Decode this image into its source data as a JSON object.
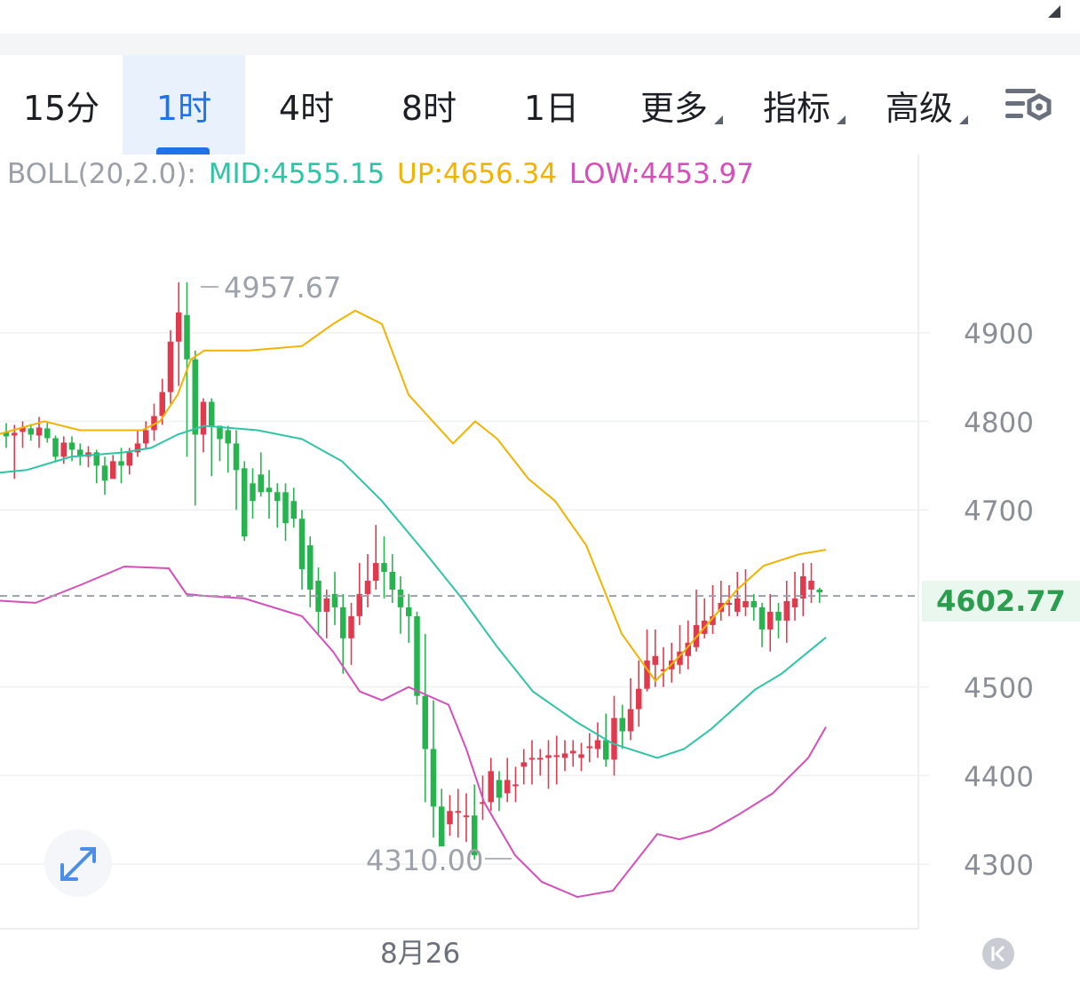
{
  "tabs": [
    {
      "label": "15分",
      "active": false,
      "caret": false
    },
    {
      "label": "1时",
      "active": true,
      "caret": false
    },
    {
      "label": "4时",
      "active": false,
      "caret": false
    },
    {
      "label": "8时",
      "active": false,
      "caret": false
    },
    {
      "label": "1日",
      "active": false,
      "caret": false
    },
    {
      "label": "更多",
      "active": false,
      "caret": true
    },
    {
      "label": "指标",
      "active": false,
      "caret": true
    },
    {
      "label": "高级",
      "active": false,
      "caret": true
    }
  ],
  "icons": {
    "collapse": "triangle-up-right-icon",
    "settings": "chart-settings-icon",
    "expand": "expand-arrows-icon",
    "jump": "jump-to-latest-icon"
  },
  "indicator": {
    "label": "BOLL(20,2.0):",
    "mid": "MID:4555.15",
    "up": "UP:4656.34",
    "low": "LOW:4453.97"
  },
  "colors": {
    "up_candle": "#e03a4e",
    "down_candle": "#27b44f",
    "mid": "#2ec4a5",
    "upper": "#f0b400",
    "lower": "#d44fb9",
    "active_tab": "#1e73e8"
  },
  "current_price": "4602.77",
  "date_label": "8月26",
  "chart_data": {
    "type": "candlestick",
    "y_axis_labels": [
      "4900",
      "4800",
      "4700",
      "4500",
      "4400",
      "4300"
    ],
    "ylim": [
      4243,
      4997
    ],
    "current_price": 4602.77,
    "annotations": {
      "high": "4957.67",
      "low": "4310.00"
    },
    "candles": [
      [
        4788,
        4783,
        4798,
        4770
      ],
      [
        4784,
        4787,
        4796,
        4735
      ],
      [
        4788,
        4793,
        4800,
        4770
      ],
      [
        4792,
        4785,
        4797,
        4778
      ],
      [
        4784,
        4793,
        4805,
        4770
      ],
      [
        4792,
        4781,
        4798,
        4776
      ],
      [
        4781,
        4760,
        4784,
        4755
      ],
      [
        4760,
        4776,
        4783,
        4752
      ],
      [
        4776,
        4768,
        4783,
        4755
      ],
      [
        4768,
        4760,
        4775,
        4750
      ],
      [
        4760,
        4765,
        4772,
        4748
      ],
      [
        4765,
        4750,
        4768,
        4730
      ],
      [
        4750,
        4733,
        4760,
        4717
      ],
      [
        4735,
        4755,
        4762,
        4740
      ],
      [
        4755,
        4750,
        4770,
        4730
      ],
      [
        4750,
        4765,
        4770,
        4740
      ],
      [
        4765,
        4775,
        4790,
        4760
      ],
      [
        4775,
        4790,
        4800,
        4768
      ],
      [
        4790,
        4806,
        4820,
        4778
      ],
      [
        4806,
        4833,
        4848,
        4796
      ],
      [
        4833,
        4890,
        4903,
        4820
      ],
      [
        4890,
        4923,
        4957,
        4840
      ],
      [
        4920,
        4870,
        4957,
        4760
      ],
      [
        4870,
        4785,
        4880,
        4705
      ],
      [
        4785,
        4822,
        4826,
        4765
      ],
      [
        4822,
        4795,
        4826,
        4738
      ],
      [
        4795,
        4780,
        4795,
        4755
      ],
      [
        4790,
        4775,
        4795,
        4742
      ],
      [
        4775,
        4745,
        4790,
        4700
      ],
      [
        4747,
        4670,
        4755,
        4665
      ],
      [
        4730,
        4710,
        4747,
        4690
      ],
      [
        4740,
        4720,
        4765,
        4715
      ],
      [
        4725,
        4720,
        4745,
        4690
      ],
      [
        4720,
        4710,
        4730,
        4680
      ],
      [
        4720,
        4685,
        4730,
        4665
      ],
      [
        4710,
        4690,
        4725,
        4680
      ],
      [
        4690,
        4633,
        4700,
        4610
      ],
      [
        4660,
        4610,
        4670,
        4590
      ],
      [
        4620,
        4585,
        4635,
        4560
      ],
      [
        4585,
        4600,
        4610,
        4555
      ],
      [
        4605,
        4590,
        4630,
        4570
      ],
      [
        4590,
        4555,
        4605,
        4515
      ],
      [
        4555,
        4580,
        4595,
        4525
      ],
      [
        4580,
        4605,
        4640,
        4570
      ],
      [
        4605,
        4620,
        4650,
        4590
      ],
      [
        4620,
        4640,
        4683,
        4610
      ],
      [
        4640,
        4630,
        4670,
        4600
      ],
      [
        4630,
        4610,
        4650,
        4595
      ],
      [
        4610,
        4590,
        4625,
        4560
      ],
      [
        4590,
        4580,
        4605,
        4550
      ],
      [
        4580,
        4490,
        4585,
        4480
      ],
      [
        4490,
        4430,
        4560,
        4370
      ],
      [
        4430,
        4365,
        4485,
        4330
      ],
      [
        4365,
        4320,
        4385,
        4345
      ],
      [
        4345,
        4360,
        4378,
        4332
      ],
      [
        4360,
        4360,
        4385,
        4330
      ],
      [
        4355,
        4355,
        4380,
        4325
      ],
      [
        4355,
        4310,
        4390,
        4305
      ],
      [
        4370,
        4370,
        4400,
        4350
      ],
      [
        4370,
        4405,
        4420,
        4360
      ],
      [
        4395,
        4375,
        4405,
        4360
      ],
      [
        4380,
        4395,
        4420,
        4370
      ],
      [
        4390,
        4390,
        4410,
        4370
      ],
      [
        4410,
        4415,
        4430,
        4390
      ],
      [
        4420,
        4420,
        4440,
        4390
      ],
      [
        4420,
        4420,
        4430,
        4400
      ],
      [
        4420,
        4423,
        4440,
        4385
      ],
      [
        4423,
        4423,
        4445,
        4390
      ],
      [
        4420,
        4425,
        4440,
        4405
      ],
      [
        4425,
        4428,
        4440,
        4410
      ],
      [
        4420,
        4424,
        4437,
        4405
      ],
      [
        4433,
        4433,
        4448,
        4415
      ],
      [
        4430,
        4440,
        4460,
        4420
      ],
      [
        4440,
        4418,
        4470,
        4410
      ],
      [
        4418,
        4465,
        4490,
        4400
      ],
      [
        4465,
        4450,
        4480,
        4430
      ],
      [
        4450,
        4475,
        4510,
        4440
      ],
      [
        4475,
        4498,
        4530,
        4455
      ],
      [
        4498,
        4530,
        4565,
        4495
      ],
      [
        4525,
        4535,
        4565,
        4500
      ],
      [
        4520,
        4520,
        4545,
        4500
      ],
      [
        4520,
        4530,
        4550,
        4505
      ],
      [
        4525,
        4540,
        4570,
        4515
      ],
      [
        4535,
        4550,
        4575,
        4520
      ],
      [
        4545,
        4570,
        4610,
        4540
      ],
      [
        4560,
        4575,
        4600,
        4555
      ],
      [
        4570,
        4580,
        4615,
        4560
      ],
      [
        4585,
        4595,
        4620,
        4575
      ],
      [
        4595,
        4595,
        4615,
        4580
      ],
      [
        4585,
        4600,
        4630,
        4580
      ],
      [
        4590,
        4597,
        4633,
        4580
      ],
      [
        4597,
        4590,
        4605,
        4575
      ],
      [
        4590,
        4565,
        4595,
        4545
      ],
      [
        4565,
        4585,
        4605,
        4540
      ],
      [
        4585,
        4575,
        4595,
        4555
      ],
      [
        4575,
        4597,
        4620,
        4550
      ],
      [
        4590,
        4600,
        4630,
        4575
      ],
      [
        4600,
        4625,
        4640,
        4580
      ],
      [
        4610,
        4620,
        4640,
        4595
      ],
      [
        4610,
        4607,
        4612,
        4595
      ]
    ],
    "boll_upper": [
      [
        -10,
        4783
      ],
      [
        50,
        4800
      ],
      [
        90,
        4790
      ],
      [
        120,
        4790
      ],
      [
        160,
        4790
      ],
      [
        180,
        4800
      ],
      [
        200,
        4830
      ],
      [
        215,
        4870
      ],
      [
        230,
        4880
      ],
      [
        280,
        4880
      ],
      [
        340,
        4885
      ],
      [
        375,
        4910
      ],
      [
        400,
        4925
      ],
      [
        430,
        4910
      ],
      [
        460,
        4830
      ],
      [
        510,
        4775
      ],
      [
        535,
        4800
      ],
      [
        560,
        4780
      ],
      [
        595,
        4735
      ],
      [
        625,
        4710
      ],
      [
        660,
        4660
      ],
      [
        700,
        4560
      ],
      [
        738,
        4507
      ],
      [
        770,
        4540
      ],
      [
        830,
        4610
      ],
      [
        860,
        4637
      ],
      [
        900,
        4650
      ],
      [
        930,
        4655
      ]
    ],
    "boll_mid": [
      [
        -10,
        4741
      ],
      [
        30,
        4745
      ],
      [
        80,
        4760
      ],
      [
        140,
        4765
      ],
      [
        170,
        4770
      ],
      [
        200,
        4785
      ],
      [
        230,
        4795
      ],
      [
        290,
        4790
      ],
      [
        340,
        4780
      ],
      [
        385,
        4755
      ],
      [
        430,
        4710
      ],
      [
        480,
        4650
      ],
      [
        520,
        4600
      ],
      [
        560,
        4545
      ],
      [
        600,
        4495
      ],
      [
        650,
        4460
      ],
      [
        690,
        4436
      ],
      [
        740,
        4420
      ],
      [
        770,
        4430
      ],
      [
        800,
        4452
      ],
      [
        850,
        4497
      ],
      [
        880,
        4515
      ],
      [
        930,
        4556
      ]
    ],
    "boll_lower": [
      [
        -10,
        4598
      ],
      [
        40,
        4595
      ],
      [
        90,
        4615
      ],
      [
        140,
        4636
      ],
      [
        190,
        4634
      ],
      [
        210,
        4605
      ],
      [
        230,
        4603
      ],
      [
        275,
        4600
      ],
      [
        340,
        4580
      ],
      [
        375,
        4540
      ],
      [
        405,
        4495
      ],
      [
        430,
        4485
      ],
      [
        460,
        4500
      ],
      [
        505,
        4480
      ],
      [
        525,
        4430
      ],
      [
        545,
        4370
      ],
      [
        580,
        4310
      ],
      [
        610,
        4280
      ],
      [
        650,
        4263
      ],
      [
        690,
        4270
      ],
      [
        740,
        4334
      ],
      [
        765,
        4328
      ],
      [
        800,
        4338
      ],
      [
        830,
        4355
      ],
      [
        870,
        4380
      ],
      [
        910,
        4420
      ],
      [
        930,
        4455
      ]
    ]
  }
}
